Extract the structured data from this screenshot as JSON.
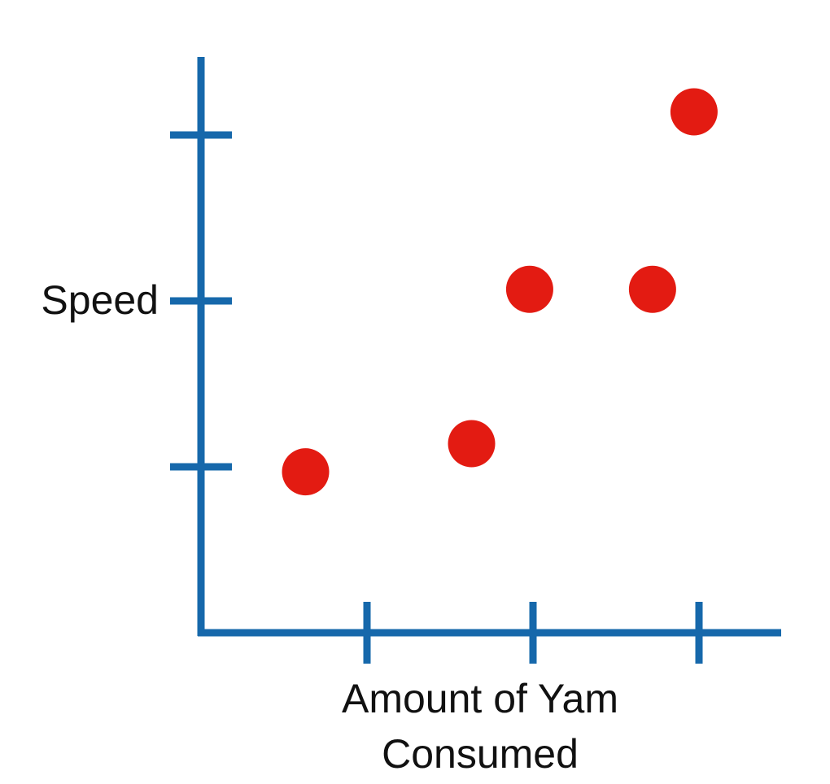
{
  "chart_data": {
    "type": "scatter",
    "title": "",
    "xlabel": "Amount of Yam Consumed",
    "ylabel": "Speed",
    "xlim": [
      0,
      3.5
    ],
    "ylim": [
      0,
      3.5
    ],
    "x_ticks": [
      1,
      2,
      3
    ],
    "y_ticks": [
      1,
      2,
      3
    ],
    "x_tick_labels": [],
    "y_tick_labels": [],
    "grid": false,
    "legend": "none",
    "points": [
      {
        "x": 0.63,
        "y": 0.97
      },
      {
        "x": 1.63,
        "y": 1.14
      },
      {
        "x": 1.98,
        "y": 2.07
      },
      {
        "x": 2.72,
        "y": 2.07
      },
      {
        "x": 2.97,
        "y": 3.14
      }
    ]
  },
  "colors": {
    "axis": "#1668ab",
    "point": "#e31b12",
    "text": "#111111"
  }
}
